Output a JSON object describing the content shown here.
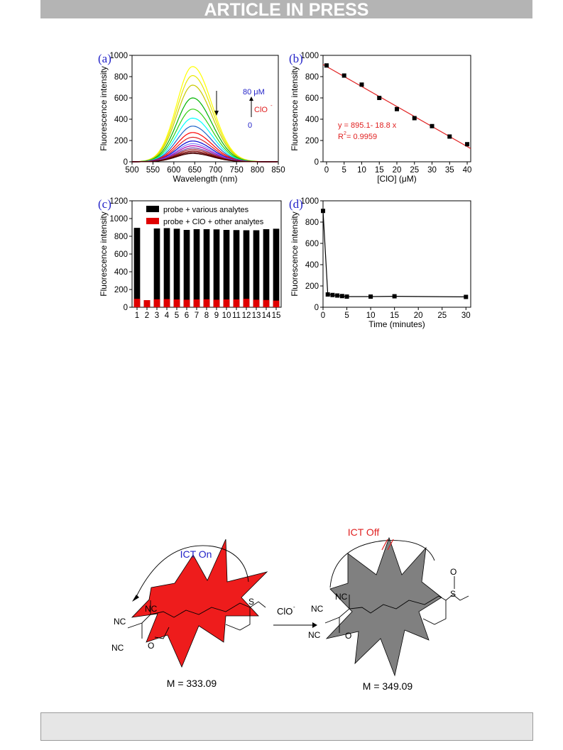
{
  "header": {
    "banner": "ARTICLE IN PRESS"
  },
  "chart_data": [
    {
      "panel": "(a)",
      "type": "line",
      "xlabel": "Wavelength (nm)",
      "ylabel": "Fluorescence intensity",
      "xlim": [
        500,
        850
      ],
      "ylim": [
        0,
        1000
      ],
      "xticks": [
        500,
        550,
        600,
        650,
        700,
        750,
        800,
        850
      ],
      "yticks": [
        0,
        200,
        400,
        600,
        800,
        1000
      ],
      "peak_wavelength": 645,
      "peak_intensities": [
        895,
        810,
        720,
        600,
        495,
        410,
        335,
        275,
        230,
        195,
        170,
        150,
        130,
        115,
        100,
        88,
        78
      ],
      "series_colors": [
        "#ffff00",
        "#e8e800",
        "#c8c800",
        "#00b400",
        "#30d010",
        "#00ffff",
        "#1e64c8",
        "#ff0000",
        "#dd2020",
        "#0000d0",
        "#8080ff",
        "#b000b0",
        "#7040a0",
        "#a02020",
        "#800000",
        "#600000",
        "#400000"
      ],
      "annotations": {
        "arrow_note_high": "80 μM",
        "arrow_note_ion": "ClO",
        "arrow_note_low": "0"
      }
    },
    {
      "panel": "(b)",
      "type": "scatter",
      "xlabel": "[ClO] (μM)",
      "ylabel": "Fluorescence intensity",
      "xlim": [
        -1,
        41
      ],
      "ylim": [
        0,
        1000
      ],
      "xticks": [
        0,
        5,
        10,
        15,
        20,
        25,
        30,
        35,
        40
      ],
      "yticks": [
        0,
        200,
        400,
        600,
        800,
        1000
      ],
      "x": [
        0,
        5,
        10,
        15,
        20,
        25,
        30,
        35,
        40
      ],
      "y": [
        905,
        810,
        725,
        600,
        495,
        410,
        335,
        237,
        165
      ],
      "fit": {
        "intercept": 895.1,
        "slope": -18.8,
        "color": "#e02020"
      },
      "equation": "y = 895.1- 18.8 x",
      "r2_prefix": "R",
      "r2_value": " = 0.9959"
    },
    {
      "panel": "(c)",
      "type": "bar",
      "xlabel": "",
      "ylabel": "Fluorescence intensity",
      "ylim": [
        0,
        1200
      ],
      "yticks": [
        0,
        200,
        400,
        600,
        800,
        1000,
        1200
      ],
      "categories": [
        "1",
        "2",
        "3",
        "4",
        "5",
        "6",
        "7",
        "8",
        "9",
        "10",
        "11",
        "12",
        "13",
        "14",
        "15"
      ],
      "series": [
        {
          "name": "probe  + various analytes",
          "color": "#000000",
          "values": [
            895,
            80,
            888,
            892,
            885,
            872,
            880,
            880,
            878,
            872,
            870,
            868,
            868,
            880,
            885
          ]
        },
        {
          "name": "probe + ClO + other analytes",
          "color": "#e00000",
          "values": [
            95,
            80,
            90,
            92,
            88,
            85,
            88,
            90,
            85,
            88,
            88,
            95,
            85,
            82,
            75
          ]
        }
      ],
      "legend": "top"
    },
    {
      "panel": "(d)",
      "type": "line",
      "xlabel": "Time (minutes)",
      "ylabel": "Fluorescence intensity",
      "xlim": [
        0,
        31
      ],
      "ylim": [
        0,
        1000
      ],
      "xticks": [
        0,
        5,
        10,
        15,
        20,
        25,
        30
      ],
      "yticks": [
        0,
        200,
        400,
        600,
        800,
        1000
      ],
      "x": [
        0,
        1,
        2,
        3,
        4,
        5,
        10,
        15,
        30
      ],
      "y": [
        905,
        120,
        115,
        110,
        105,
        100,
        100,
        103,
        97
      ]
    }
  ],
  "scheme": {
    "left_label": "ICT On",
    "right_label": "ICT Off",
    "reagent": "ClO",
    "left_mass": "M = 333.09",
    "right_mass": "M = 349.09",
    "atoms": {
      "nc": "NC",
      "o": "O",
      "s": "S"
    }
  },
  "colors": {
    "left_star": "#ee1c1c",
    "right_star": "#808080",
    "axis_blue": "#2323c8"
  }
}
